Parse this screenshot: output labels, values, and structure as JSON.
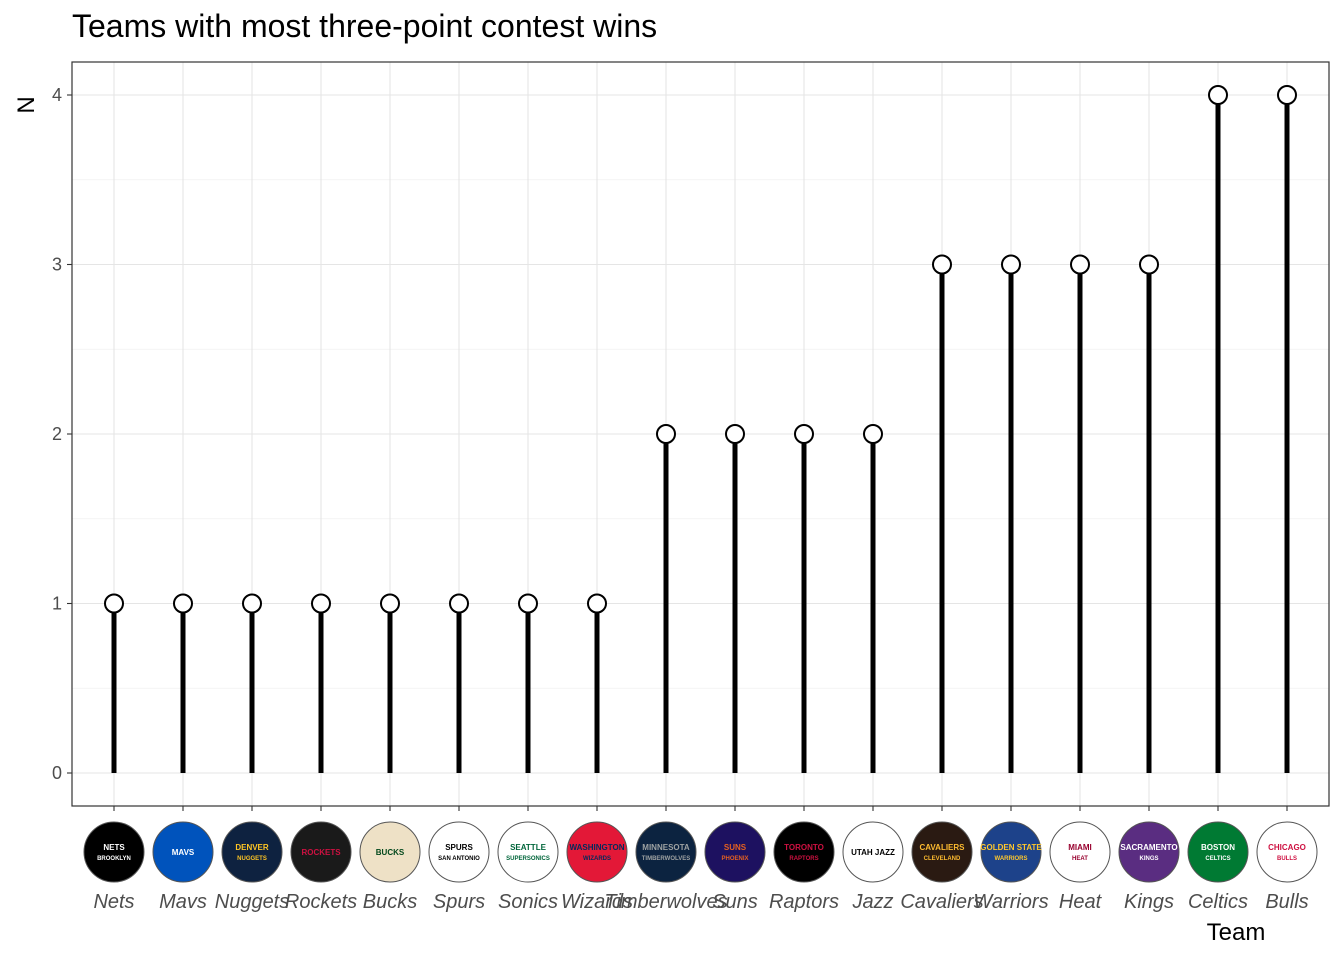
{
  "chart_data": {
    "type": "lollipop",
    "title": "Teams with most three-point contest wins",
    "xlabel": "Team",
    "ylabel": "N",
    "ylim": [
      0,
      4
    ],
    "yticks": [
      0,
      1,
      2,
      3,
      4
    ],
    "grid": true,
    "categories": [
      "Nets",
      "Mavs",
      "Nuggets",
      "Rockets",
      "Bucks",
      "Spurs",
      "Sonics",
      "Wizards",
      "Timberwolves",
      "Suns",
      "Raptors",
      "Jazz",
      "Cavaliers",
      "Warriors",
      "Heat",
      "Kings",
      "Celtics",
      "Bulls"
    ],
    "values": [
      1,
      1,
      1,
      1,
      1,
      1,
      1,
      1,
      2,
      2,
      2,
      2,
      3,
      3,
      3,
      3,
      4,
      4
    ],
    "logos": [
      {
        "text": [
          "NETS",
          "BROOKLYN"
        ],
        "bg": "#000000",
        "fg": "#ffffff"
      },
      {
        "text": [
          "MAVS"
        ],
        "bg": "#0053BC",
        "fg": "#ffffff"
      },
      {
        "text": [
          "DENVER",
          "NUGGETS"
        ],
        "bg": "#0E2240",
        "fg": "#FEC524"
      },
      {
        "text": [
          "ROCKETS"
        ],
        "bg": "#1a1a1a",
        "fg": "#CE1141"
      },
      {
        "text": [
          "BUCKS"
        ],
        "bg": "#EEE1C6",
        "fg": "#00471B"
      },
      {
        "text": [
          "SPURS",
          "SAN ANTONIO"
        ],
        "bg": "#ffffff",
        "fg": "#000000"
      },
      {
        "text": [
          "SEATTLE",
          "SUPERSONICS"
        ],
        "bg": "#ffffff",
        "fg": "#00653A"
      },
      {
        "text": [
          "WASHINGTON",
          "WIZARDS"
        ],
        "bg": "#E31837",
        "fg": "#002B5C"
      },
      {
        "text": [
          "MINNESOTA",
          "TIMBERWOLVES"
        ],
        "bg": "#0C2340",
        "fg": "#9EA2A2"
      },
      {
        "text": [
          "SUNS",
          "PHOENIX"
        ],
        "bg": "#1D1160",
        "fg": "#E56020"
      },
      {
        "text": [
          "TORONTO",
          "RAPTORS"
        ],
        "bg": "#000000",
        "fg": "#CE1141"
      },
      {
        "text": [
          "UTAH JAZZ"
        ],
        "bg": "#ffffff",
        "fg": "#000000"
      },
      {
        "text": [
          "CAVALIERS",
          "CLEVELAND"
        ],
        "bg": "#2a1a12",
        "fg": "#FDBB30"
      },
      {
        "text": [
          "GOLDEN STATE",
          "WARRIORS"
        ],
        "bg": "#1D428A",
        "fg": "#FFC72C"
      },
      {
        "text": [
          "MIAMI",
          "HEAT"
        ],
        "bg": "#ffffff",
        "fg": "#98002E"
      },
      {
        "text": [
          "SACRAMENTO",
          "KINGS"
        ],
        "bg": "#5A2D81",
        "fg": "#ffffff"
      },
      {
        "text": [
          "BOSTON",
          "CELTICS"
        ],
        "bg": "#007A33",
        "fg": "#ffffff"
      },
      {
        "text": [
          "CHICAGO",
          "BULLS"
        ],
        "bg": "#ffffff",
        "fg": "#CE1141"
      }
    ],
    "colors": {
      "stem": "#000000",
      "marker_fill": "#ffffff",
      "marker_stroke": "#000000",
      "grid": "#e5e5e5",
      "panel_border": "#333333",
      "tick_text": "#4d4d4d"
    }
  }
}
